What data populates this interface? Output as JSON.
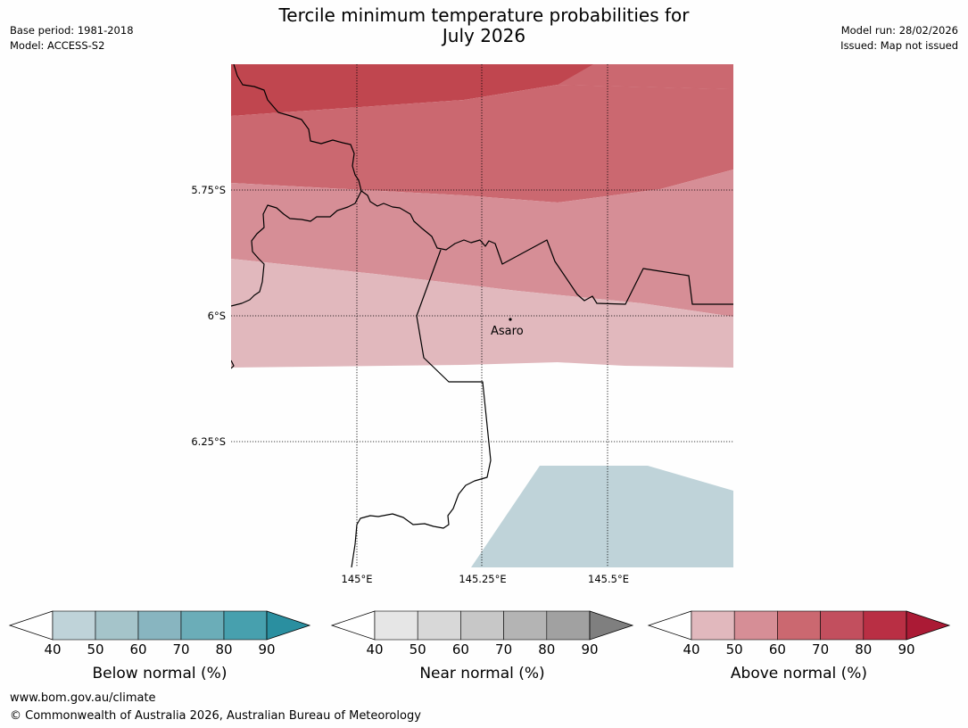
{
  "header": {
    "title_line1": "Tercile minimum temperature probabilities for",
    "title_line2": "July 2026",
    "base_period": "Base period: 1981-2018",
    "model": "Model: ACCESS-S2",
    "model_run": "Model run: 28/02/2026",
    "issued": "Issued: Map not issued"
  },
  "map": {
    "place_label": "Asaro",
    "lat_labels": [
      "5.75°S",
      "6°S",
      "6.25°S"
    ],
    "lon_labels": [
      "145°E",
      "145.25°E",
      "145.5°E"
    ],
    "colors": {
      "above_80": "#c0464f",
      "above_70": "#cb6870",
      "above_60": "#d68e96",
      "above_50": "#e1b8bd",
      "below_50": "#bfd3d9"
    }
  },
  "colorbars": [
    {
      "title": "Below normal (%)",
      "ticks": [
        "40",
        "50",
        "60",
        "70",
        "80",
        "90"
      ],
      "colors": [
        "#bfd3d9",
        "#a5c4ca",
        "#88b5c0",
        "#6badb8",
        "#47a0ae",
        "#2a8fa0"
      ]
    },
    {
      "title": "Near normal (%)",
      "ticks": [
        "40",
        "50",
        "60",
        "70",
        "80",
        "90"
      ],
      "colors": [
        "#e6e6e6",
        "#d8d8d8",
        "#c7c7c7",
        "#b4b4b4",
        "#a1a1a1",
        "#7f7f7f"
      ]
    },
    {
      "title": "Above normal (%)",
      "ticks": [
        "40",
        "50",
        "60",
        "70",
        "80",
        "90"
      ],
      "colors": [
        "#e1b8bd",
        "#d68e96",
        "#cb6870",
        "#c24f5e",
        "#b92f44",
        "#ab1a35"
      ]
    }
  ],
  "footer": {
    "url": "www.bom.gov.au/climate",
    "copyright": "© Commonwealth of Australia 2026, Australian Bureau of Meteorology"
  }
}
